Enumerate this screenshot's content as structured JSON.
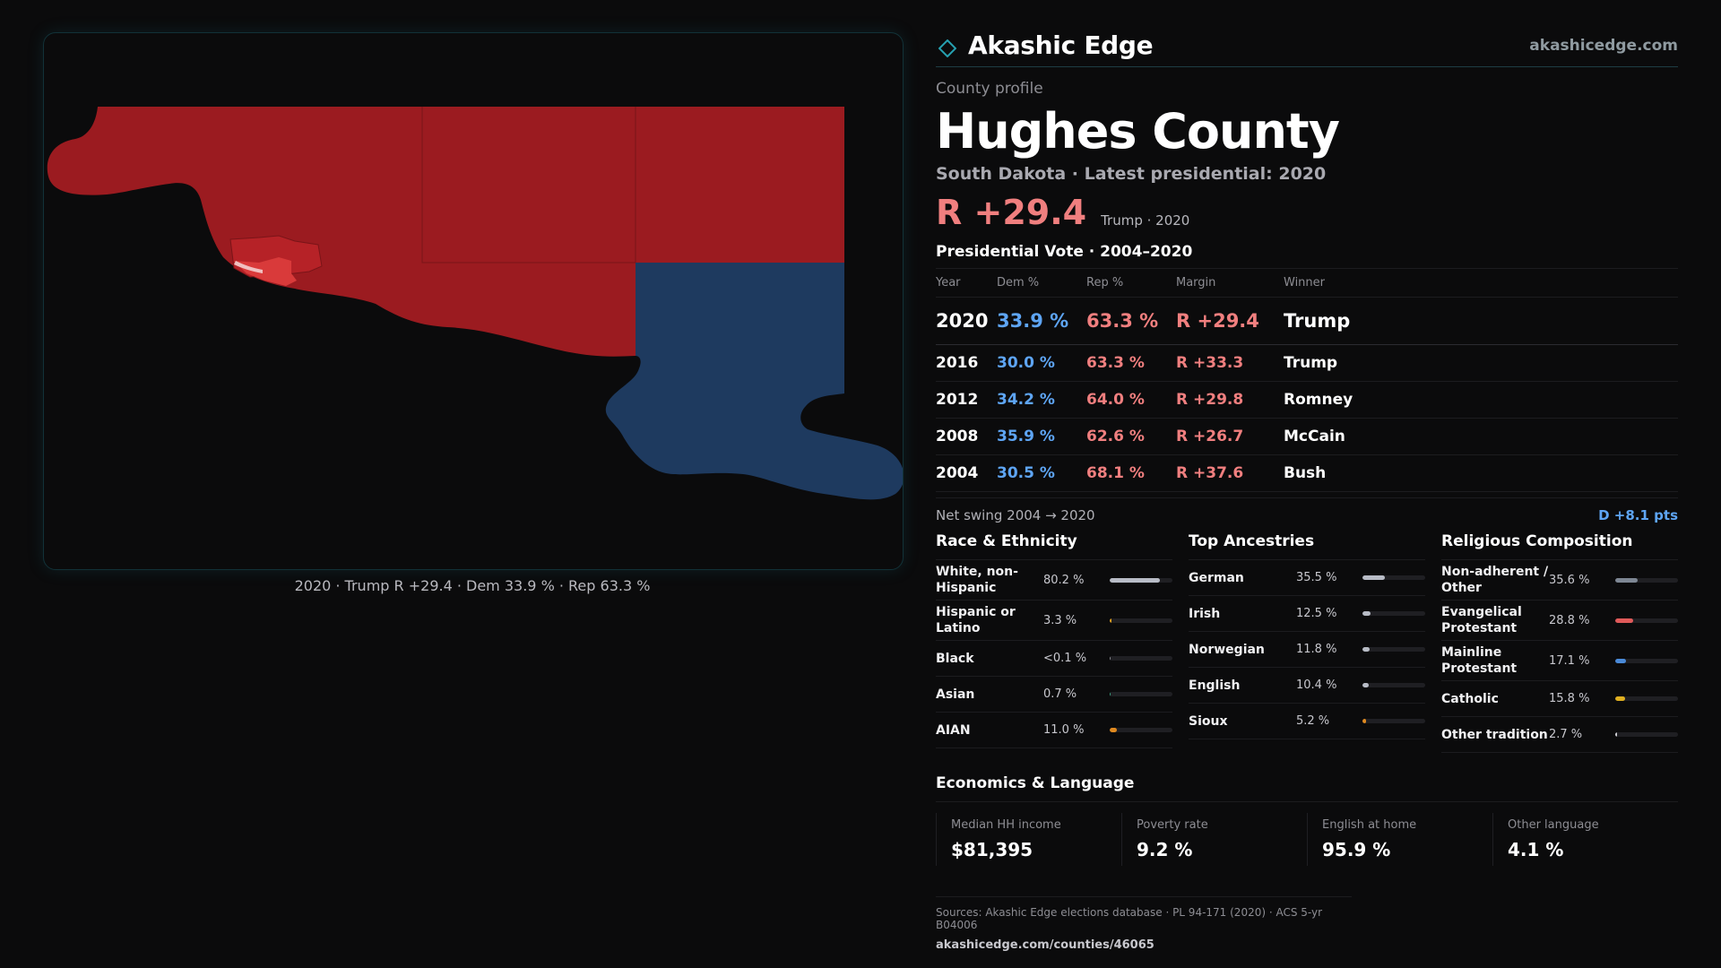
{
  "map": {
    "caption": "2020 · Trump R +29.4 · Dem 33.9 % · Rep 63.3 %",
    "colors": {
      "rep_dark": "#9b1b20",
      "rep_mid": "#b62227",
      "rep_light": "#d93a3a",
      "dem": "#1e3a5f"
    }
  },
  "brand": {
    "name": "Akashic Edge",
    "url": "akashicedge.com",
    "logo_icon": "diamond-icon"
  },
  "profile": {
    "eyebrow": "County profile",
    "title": "Hughes County",
    "subtitle": "South Dakota · Latest presidential: 2020",
    "margin": "R +29.4",
    "margin_note": "Trump · 2020"
  },
  "votes": {
    "heading": "Presidential Vote · 2004–2020",
    "headers": {
      "year": "Year",
      "dem": "Dem %",
      "rep": "Rep %",
      "margin": "Margin",
      "winner": "Winner"
    },
    "rows": [
      {
        "year": "2020",
        "dem": "33.9 %",
        "rep": "63.3 %",
        "margin": "R +29.4",
        "winner": "Trump"
      },
      {
        "year": "2016",
        "dem": "30.0 %",
        "rep": "63.3 %",
        "margin": "R +33.3",
        "winner": "Trump"
      },
      {
        "year": "2012",
        "dem": "34.2 %",
        "rep": "64.0 %",
        "margin": "R +29.8",
        "winner": "Romney"
      },
      {
        "year": "2008",
        "dem": "35.9 %",
        "rep": "62.6 %",
        "margin": "R +26.7",
        "winner": "McCain"
      },
      {
        "year": "2004",
        "dem": "30.5 %",
        "rep": "68.1 %",
        "margin": "R +37.6",
        "winner": "Bush"
      }
    ],
    "swing_label": "Net swing 2004 → 2020",
    "swing_value": "D +8.1 pts"
  },
  "race": {
    "title": "Race & Ethnicity",
    "items": [
      {
        "label": "White, non-Hispanic",
        "value": "80.2 %",
        "share": 0.802,
        "color": "#b8bcc6"
      },
      {
        "label": "Hispanic or Latino",
        "value": "3.3 %",
        "share": 0.033,
        "color": "#e0a020"
      },
      {
        "label": "Black",
        "value": "<0.1 %",
        "share": 0.001,
        "color": "#8a8a90"
      },
      {
        "label": "Asian",
        "value": "0.7 %",
        "share": 0.007,
        "color": "#3aa080"
      },
      {
        "label": "AIAN",
        "value": "11.0 %",
        "share": 0.11,
        "color": "#e08a20"
      }
    ]
  },
  "ancestry": {
    "title": "Top Ancestries",
    "items": [
      {
        "label": "German",
        "value": "35.5 %",
        "share": 0.355,
        "color": "#b8bcc6"
      },
      {
        "label": "Irish",
        "value": "12.5 %",
        "share": 0.125,
        "color": "#b8bcc6"
      },
      {
        "label": "Norwegian",
        "value": "11.8 %",
        "share": 0.118,
        "color": "#b8bcc6"
      },
      {
        "label": "English",
        "value": "10.4 %",
        "share": 0.104,
        "color": "#b8bcc6"
      },
      {
        "label": "Sioux",
        "value": "5.2 %",
        "share": 0.052,
        "color": "#e08a20"
      }
    ]
  },
  "religion": {
    "title": "Religious Composition",
    "items": [
      {
        "label": "Non-adherent / Other",
        "value": "35.6 %",
        "share": 0.356,
        "color": "#7e8794"
      },
      {
        "label": "Evangelical Protestant",
        "value": "28.8 %",
        "share": 0.288,
        "color": "#e05a5a"
      },
      {
        "label": "Mainline Protestant",
        "value": "17.1 %",
        "share": 0.171,
        "color": "#4a8ad8"
      },
      {
        "label": "Catholic",
        "value": "15.8 %",
        "share": 0.158,
        "color": "#e0b020"
      },
      {
        "label": "Other tradition",
        "value": "2.7 %",
        "share": 0.027,
        "color": "#d0d0d6"
      }
    ]
  },
  "economics": {
    "title": "Economics & Language",
    "items": [
      {
        "label": "Median HH income",
        "value": "$81,395"
      },
      {
        "label": "Poverty rate",
        "value": "9.2 %"
      },
      {
        "label": "English at home",
        "value": "95.9 %"
      },
      {
        "label": "Other language",
        "value": "4.1 %"
      }
    ]
  },
  "sources": {
    "line": "Sources: Akashic Edge elections database · PL 94-171 (2020) · ACS 5-yr B04006",
    "url": "akashicedge.com/counties/46065"
  }
}
